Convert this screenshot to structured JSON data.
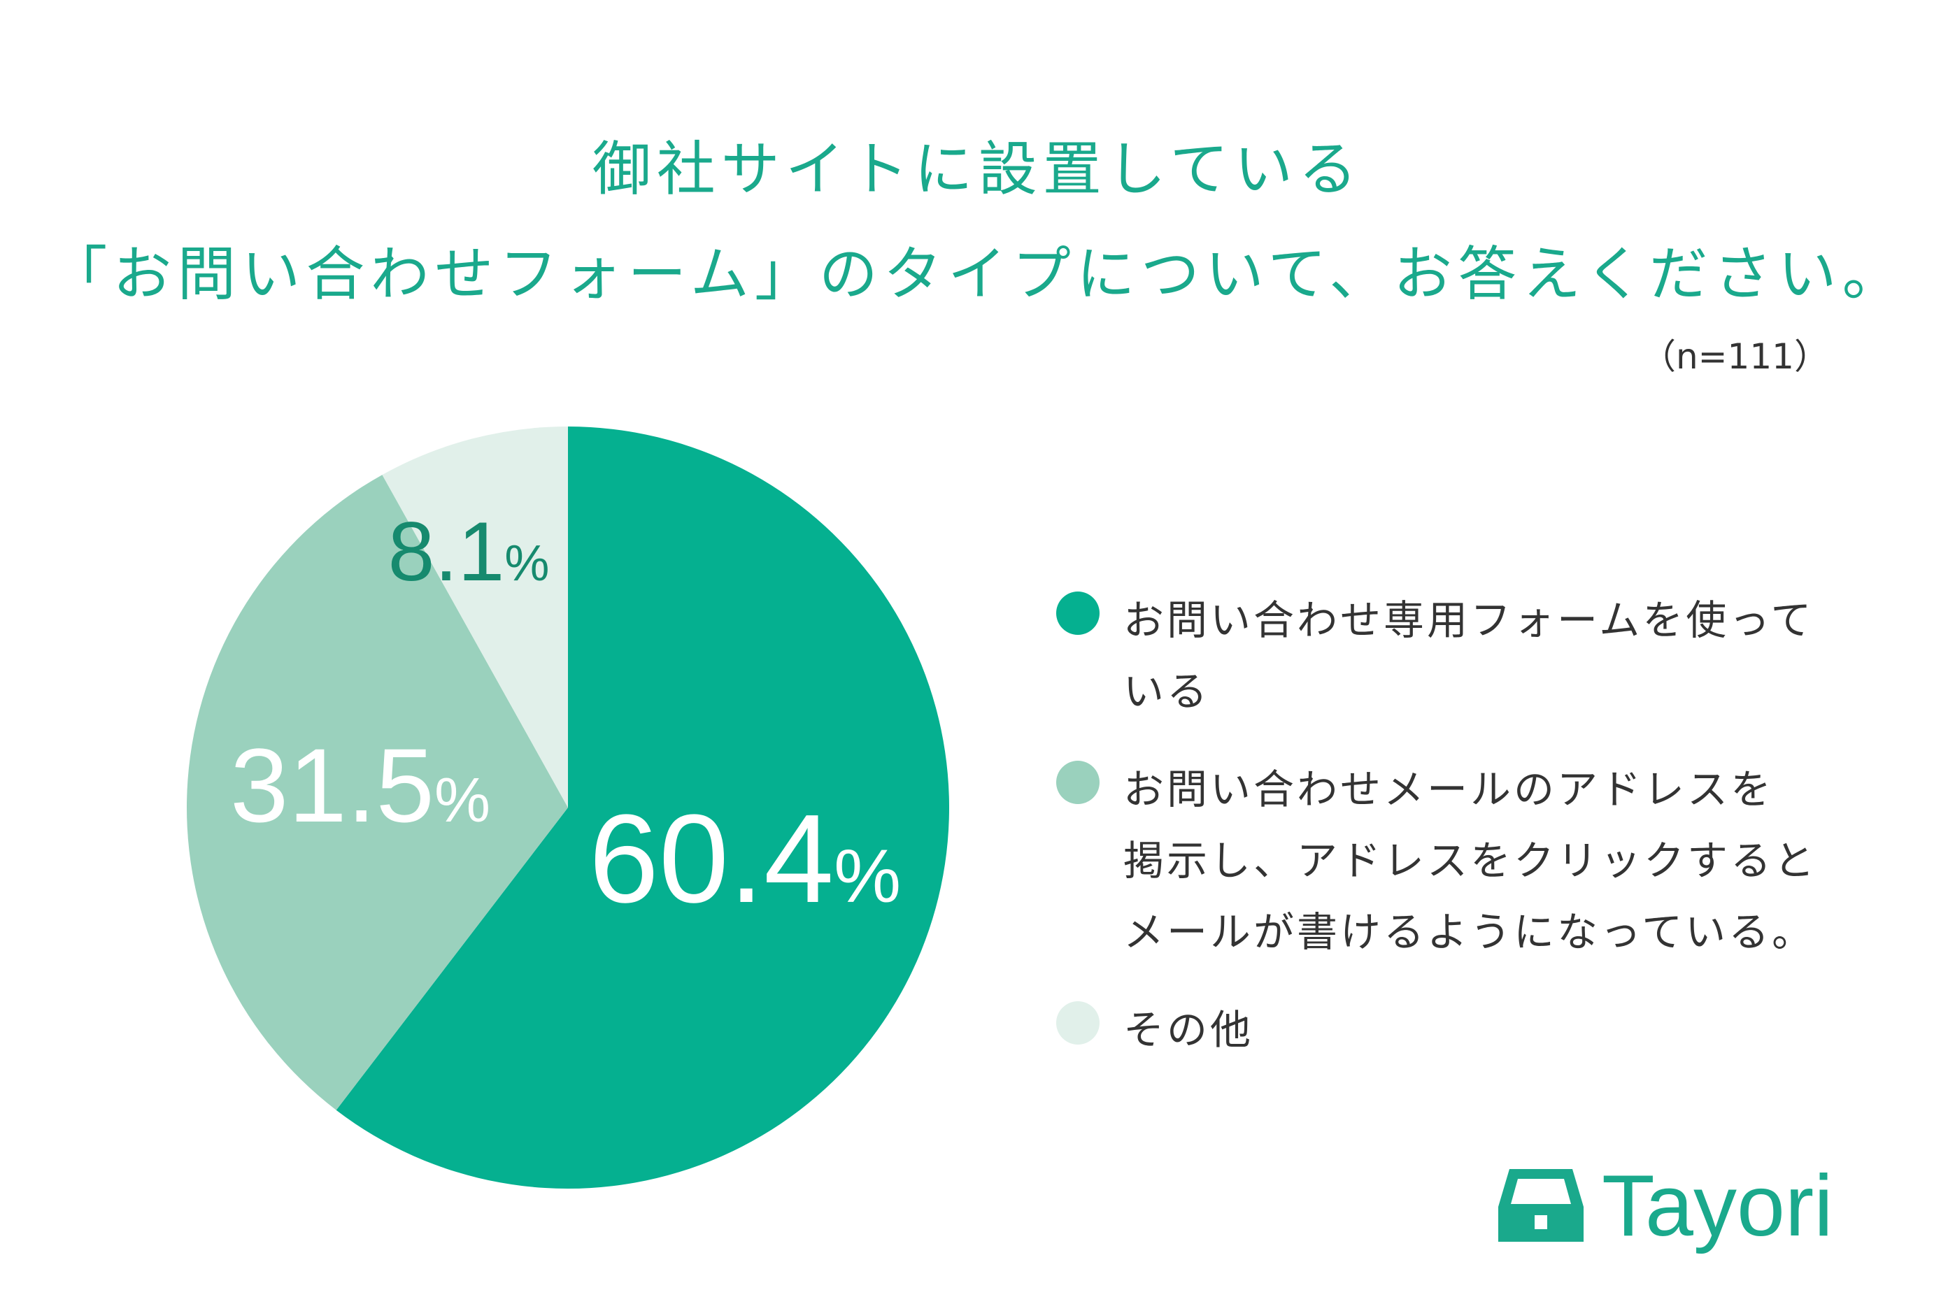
{
  "title": {
    "line1": "御社サイトに設置している",
    "line2": "「お問い合わせフォーム」のタイプについて、お答えください。"
  },
  "sample_size": "（n=111）",
  "chart_data": {
    "type": "pie",
    "slices": [
      {
        "label": "お問い合わせ専用フォームを使っている",
        "value": 60.4,
        "display": "60.4%",
        "color": "#05b090",
        "label_color": "#ffffff"
      },
      {
        "label": "お問い合わせメールのアドレスを掲示し、アドレスをクリックするとメールが書けるようになっている。",
        "value": 31.5,
        "display": "31.5%",
        "color": "#9ad1bd",
        "label_color": "#ffffff"
      },
      {
        "label": "その他",
        "value": 8.1,
        "display": "8.1%",
        "color": "#e1f0ea",
        "label_color": "#168a6e"
      }
    ]
  },
  "legend": [
    {
      "text": "お問い合わせ専用フォームを使って\nいる",
      "color": "#05b090"
    },
    {
      "text": "お問い合わせメールのアドレスを\n掲示し、アドレスをクリックすると\nメールが書けるようになっている。",
      "color": "#9ad1bd"
    },
    {
      "text": "その他",
      "color": "#e1f0ea"
    }
  ],
  "brand": {
    "name": "Tayori",
    "icon": "inbox-tray-icon",
    "color": "#1aa98c"
  }
}
